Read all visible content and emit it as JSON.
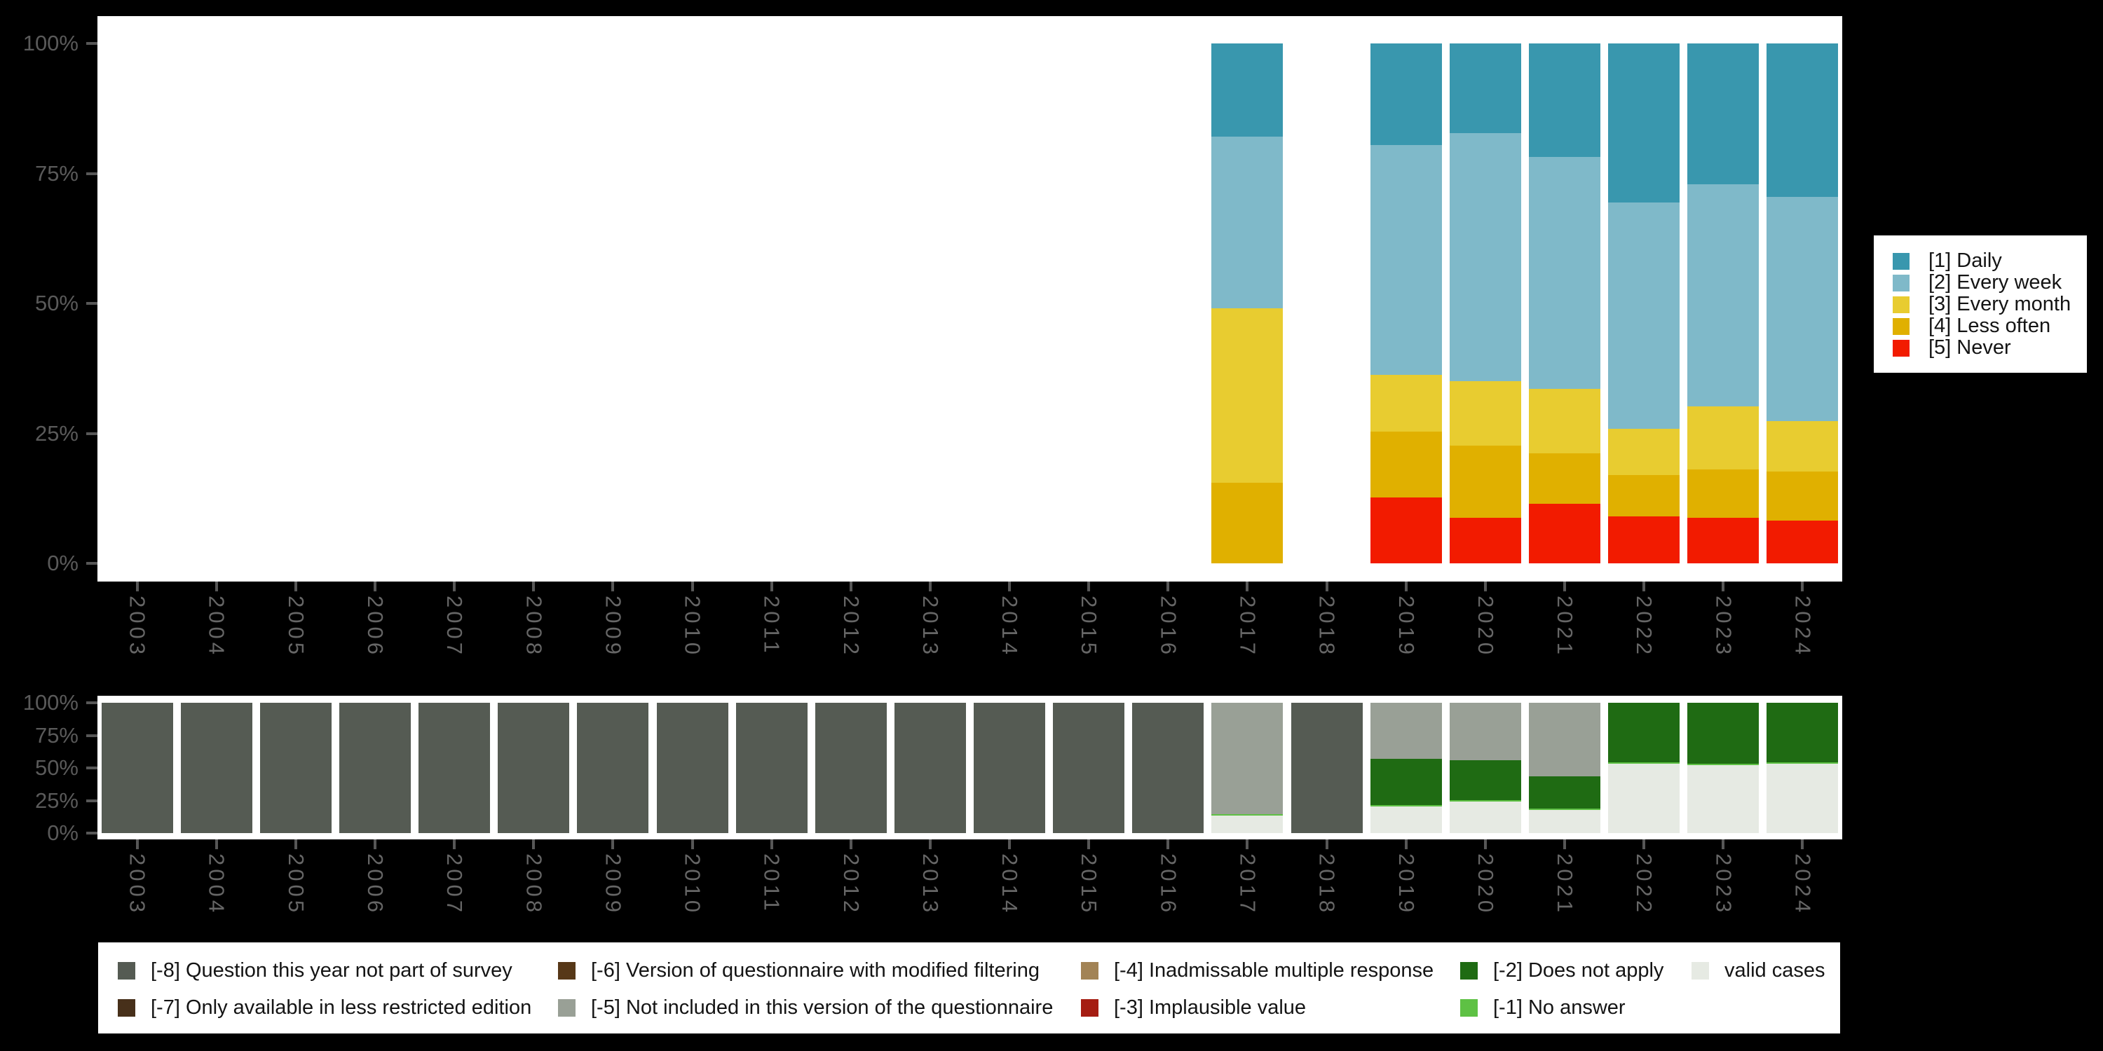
{
  "figure": {
    "background_color": "#000000",
    "panel_color": "#ffffff",
    "axis_text_color": "#5a5a5a",
    "year_text_color": "#666666"
  },
  "y_axis": {
    "tick_labels": [
      "100%",
      "75%",
      "50%",
      "25%",
      "0%"
    ],
    "tick_values": [
      100,
      75,
      50,
      25,
      0
    ]
  },
  "chart_data": [
    {
      "id": "frequency-chart",
      "type": "bar",
      "stacked": true,
      "percent": true,
      "ylim": [
        0,
        100
      ],
      "grid": false,
      "legend_position": "right",
      "categories": [
        "2003",
        "2004",
        "2005",
        "2006",
        "2007",
        "2008",
        "2009",
        "2010",
        "2011",
        "2012",
        "2013",
        "2014",
        "2015",
        "2016",
        "2017",
        "2018",
        "2019",
        "2020",
        "2021",
        "2022",
        "2023",
        "2024"
      ],
      "series": [
        {
          "name": "[1] Daily",
          "color": "#3997ae",
          "values": [
            0,
            0,
            0,
            0,
            0,
            0,
            0,
            0,
            0,
            0,
            0,
            0,
            0,
            0,
            17.9,
            0,
            19.5,
            17.3,
            21.8,
            30.6,
            27.1,
            29.5
          ]
        },
        {
          "name": "[2] Every week",
          "color": "#7fb9c9",
          "values": [
            0,
            0,
            0,
            0,
            0,
            0,
            0,
            0,
            0,
            0,
            0,
            0,
            0,
            0,
            33.0,
            0,
            44.2,
            47.6,
            44.6,
            43.5,
            42.7,
            43.1
          ]
        },
        {
          "name": "[3] Every month",
          "color": "#e8cc30",
          "values": [
            0,
            0,
            0,
            0,
            0,
            0,
            0,
            0,
            0,
            0,
            0,
            0,
            0,
            0,
            33.6,
            0,
            10.9,
            12.4,
            12.4,
            8.9,
            12.1,
            9.8
          ]
        },
        {
          "name": "[4] Less often",
          "color": "#e0b000",
          "values": [
            0,
            0,
            0,
            0,
            0,
            0,
            0,
            0,
            0,
            0,
            0,
            0,
            0,
            0,
            15.5,
            0,
            12.7,
            13.9,
            9.8,
            8.0,
            9.4,
            9.4
          ]
        },
        {
          "name": "[5] Never",
          "color": "#f21b00",
          "values": [
            0,
            0,
            0,
            0,
            0,
            0,
            0,
            0,
            0,
            0,
            0,
            0,
            0,
            0,
            0,
            0,
            12.7,
            8.8,
            11.4,
            9.0,
            8.7,
            8.2
          ]
        }
      ]
    },
    {
      "id": "missings-chart",
      "type": "bar",
      "stacked": true,
      "percent": true,
      "ylim": [
        0,
        100
      ],
      "grid": false,
      "legend_position": "bottom",
      "categories": [
        "2003",
        "2004",
        "2005",
        "2006",
        "2007",
        "2008",
        "2009",
        "2010",
        "2011",
        "2012",
        "2013",
        "2014",
        "2015",
        "2016",
        "2017",
        "2018",
        "2019",
        "2020",
        "2021",
        "2022",
        "2023",
        "2024"
      ],
      "series": [
        {
          "name": "[-8] Question this year not part of survey",
          "color": "#555b53",
          "values": [
            100,
            100,
            100,
            100,
            100,
            100,
            100,
            100,
            100,
            100,
            100,
            100,
            100,
            100,
            0,
            100,
            0,
            0,
            0,
            0,
            0,
            0
          ]
        },
        {
          "name": "[-7] Only available in less restricted edition",
          "color": "#47301a",
          "values": [
            0,
            0,
            0,
            0,
            0,
            0,
            0,
            0,
            0,
            0,
            0,
            0,
            0,
            0,
            0,
            0,
            0,
            0,
            0,
            0,
            0,
            0
          ]
        },
        {
          "name": "[-6] Version of questionnaire with modified filtering",
          "color": "#573818",
          "values": [
            0,
            0,
            0,
            0,
            0,
            0,
            0,
            0,
            0,
            0,
            0,
            0,
            0,
            0,
            0,
            0,
            0,
            0,
            0,
            0,
            0,
            0
          ]
        },
        {
          "name": "[-5] Not included in this version of the questionnaire",
          "color": "#99a096",
          "values": [
            0,
            0,
            0,
            0,
            0,
            0,
            0,
            0,
            0,
            0,
            0,
            0,
            0,
            0,
            85.5,
            0,
            43.0,
            44.0,
            56.5,
            0,
            0,
            0
          ]
        },
        {
          "name": "[-4] Inadmissable multiple response",
          "color": "#a28355",
          "values": [
            0,
            0,
            0,
            0,
            0,
            0,
            0,
            0,
            0,
            0,
            0,
            0,
            0,
            0,
            0,
            0,
            0,
            0,
            0,
            0,
            0,
            0
          ]
        },
        {
          "name": "[-3] Implausible value",
          "color": "#a51d12",
          "values": [
            0,
            0,
            0,
            0,
            0,
            0,
            0,
            0,
            0,
            0,
            0,
            0,
            0,
            0,
            0,
            0,
            0,
            0,
            0,
            0,
            0,
            0
          ]
        },
        {
          "name": "[-2] Does not apply",
          "color": "#1f6b13",
          "values": [
            0,
            0,
            0,
            0,
            0,
            0,
            0,
            0,
            0,
            0,
            0,
            0,
            0,
            0,
            0,
            0,
            35.5,
            30.6,
            24.7,
            45.7,
            46.8,
            45.7
          ]
        },
        {
          "name": "[-1] No answer",
          "color": "#5ec144",
          "values": [
            0,
            0,
            0,
            0,
            0,
            0,
            0,
            0,
            0,
            0,
            0,
            0,
            0,
            0,
            1.0,
            0,
            1.3,
            1.2,
            1.1,
            1.0,
            1.0,
            1.0
          ]
        },
        {
          "name": "valid cases",
          "color": "#e6eae3",
          "values": [
            0,
            0,
            0,
            0,
            0,
            0,
            0,
            0,
            0,
            0,
            0,
            0,
            0,
            0,
            13.5,
            0,
            20.2,
            24.2,
            17.7,
            53.3,
            52.2,
            53.3
          ]
        }
      ]
    }
  ]
}
